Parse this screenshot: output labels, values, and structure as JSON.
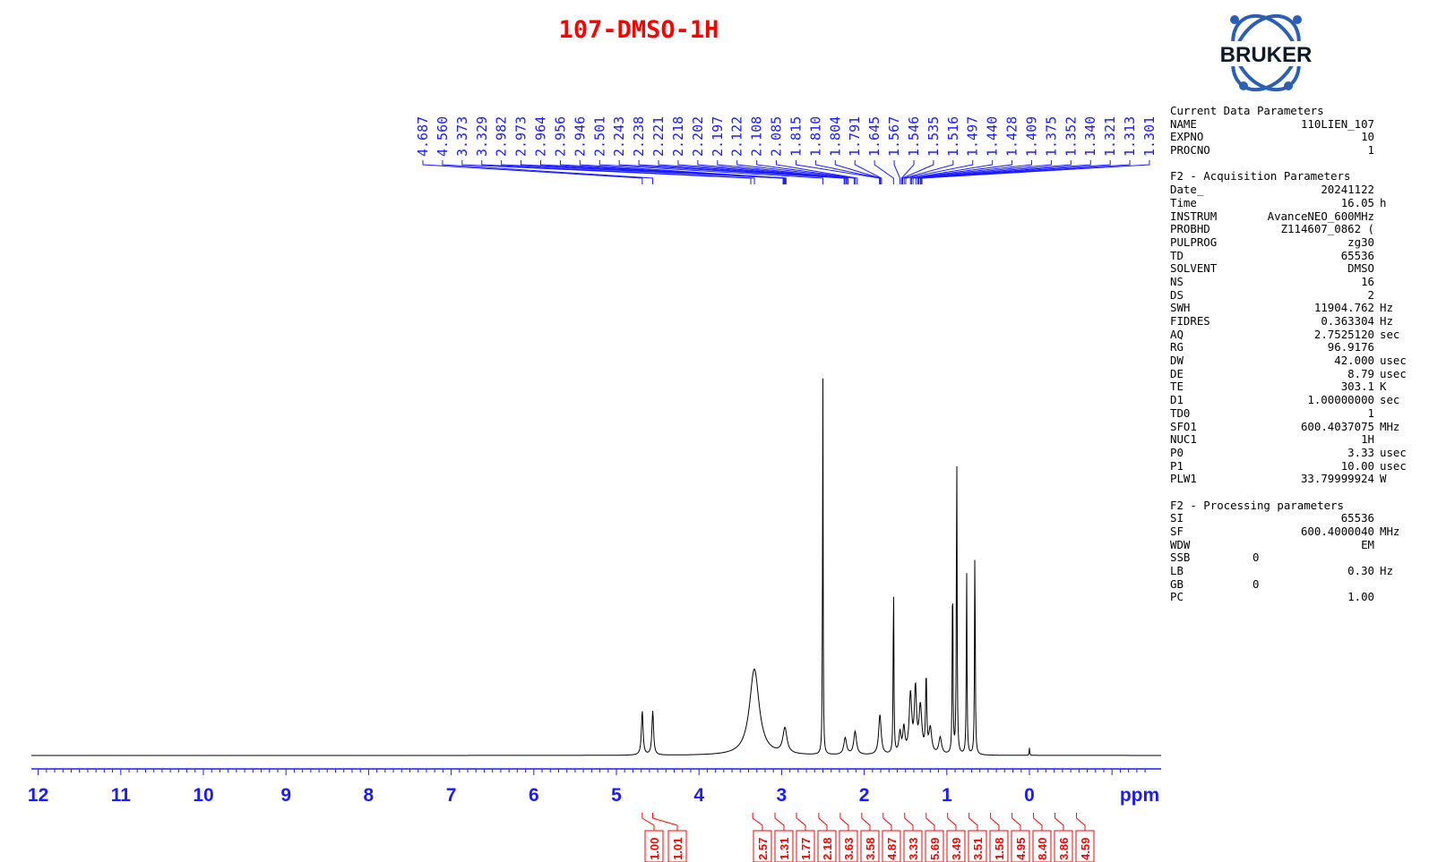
{
  "title": "107-DMSO-1H",
  "logo_text": "BRUKER",
  "chart_data": {
    "type": "line",
    "x_unit_label": "ppm",
    "xlim": [
      12.4,
      -1.4
    ],
    "x_ticks": [
      "12",
      "11",
      "10",
      "9",
      "8",
      "7",
      "6",
      "5",
      "4",
      "3",
      "2",
      "1",
      "0"
    ],
    "peak_labels": [
      "4.687",
      "4.560",
      "3.373",
      "3.329",
      "2.982",
      "2.973",
      "2.964",
      "2.956",
      "2.946",
      "2.501",
      "2.243",
      "2.238",
      "2.221",
      "2.218",
      "2.202",
      "2.197",
      "2.122",
      "2.108",
      "2.085",
      "1.815",
      "1.810",
      "1.804",
      "1.791",
      "1.645",
      "1.567",
      "1.546",
      "1.535",
      "1.516",
      "1.497",
      "1.440",
      "1.428",
      "1.409",
      "1.375",
      "1.352",
      "1.340",
      "1.321",
      "1.313",
      "1.301"
    ],
    "peaks": [
      {
        "ppm": 4.687,
        "height": 0.105,
        "width": 0.012
      },
      {
        "ppm": 4.56,
        "height": 0.105,
        "width": 0.012
      },
      {
        "ppm": 3.33,
        "height": 0.205,
        "width": 0.07
      },
      {
        "ppm": 2.96,
        "height": 0.06,
        "width": 0.03
      },
      {
        "ppm": 2.501,
        "height": 0.95,
        "width": 0.004
      },
      {
        "ppm": 2.23,
        "height": 0.04,
        "width": 0.02
      },
      {
        "ppm": 2.11,
        "height": 0.055,
        "width": 0.02
      },
      {
        "ppm": 1.81,
        "height": 0.095,
        "width": 0.018
      },
      {
        "ppm": 1.645,
        "height": 0.42,
        "width": 0.005
      },
      {
        "ppm": 1.567,
        "height": 0.05,
        "width": 0.015
      },
      {
        "ppm": 1.52,
        "height": 0.06,
        "width": 0.015
      },
      {
        "ppm": 1.44,
        "height": 0.14,
        "width": 0.018
      },
      {
        "ppm": 1.38,
        "height": 0.15,
        "width": 0.015
      },
      {
        "ppm": 1.32,
        "height": 0.11,
        "width": 0.02
      },
      {
        "ppm": 1.25,
        "height": 0.18,
        "width": 0.008
      },
      {
        "ppm": 1.2,
        "height": 0.06,
        "width": 0.02
      },
      {
        "ppm": 1.08,
        "height": 0.04,
        "width": 0.02
      },
      {
        "ppm": 0.93,
        "height": 0.45,
        "width": 0.005
      },
      {
        "ppm": 0.88,
        "height": 0.74,
        "width": 0.005
      },
      {
        "ppm": 0.76,
        "height": 0.44,
        "width": 0.005
      },
      {
        "ppm": 0.66,
        "height": 0.51,
        "width": 0.005
      },
      {
        "ppm": 0.0,
        "height": 0.018,
        "width": 0.004
      }
    ],
    "integrals": [
      {
        "value": "1.00",
        "ppm": 4.687
      },
      {
        "value": "1.01",
        "ppm": 4.56
      },
      {
        "value": "2.57",
        "ppm": 3.35
      },
      {
        "value": "1.31",
        "ppm": 3.08
      },
      {
        "value": "1.77",
        "ppm": 2.82
      },
      {
        "value": "2.18",
        "ppm": 2.55
      },
      {
        "value": "3.63",
        "ppm": 2.29
      },
      {
        "value": "3.58",
        "ppm": 2.03
      },
      {
        "value": "4.87",
        "ppm": 1.77
      },
      {
        "value": "3.33",
        "ppm": 1.51
      },
      {
        "value": "5.69",
        "ppm": 1.25
      },
      {
        "value": "3.49",
        "ppm": 0.99
      },
      {
        "value": "3.51",
        "ppm": 0.73
      },
      {
        "value": "1.58",
        "ppm": 0.47
      },
      {
        "value": "4.95",
        "ppm": 0.21
      },
      {
        "value": "8.40",
        "ppm": -0.05
      },
      {
        "value": "3.86",
        "ppm": -0.31
      },
      {
        "value": "4.59",
        "ppm": -0.57
      }
    ]
  },
  "parameters": [
    {
      "header": "Current Data Parameters",
      "rows": [
        {
          "name": "NAME",
          "value": "110LIEN_107",
          "unit": ""
        },
        {
          "name": "EXPNO",
          "value": "10",
          "unit": ""
        },
        {
          "name": "PROCNO",
          "value": "1",
          "unit": ""
        }
      ]
    },
    {
      "header": "F2 - Acquisition Parameters",
      "rows": [
        {
          "name": "Date_",
          "value": "20241122",
          "unit": ""
        },
        {
          "name": "Time",
          "value": "16.05",
          "unit": "h"
        },
        {
          "name": "INSTRUM",
          "value": "AvanceNEO_600MHz",
          "unit": ""
        },
        {
          "name": "PROBHD",
          "value": "Z114607_0862 (",
          "unit": ""
        },
        {
          "name": "PULPROG",
          "value": "zg30",
          "unit": ""
        },
        {
          "name": "TD",
          "value": "65536",
          "unit": ""
        },
        {
          "name": "SOLVENT",
          "value": "DMSO",
          "unit": ""
        },
        {
          "name": "NS",
          "value": "16",
          "unit": ""
        },
        {
          "name": "DS",
          "value": "2",
          "unit": ""
        },
        {
          "name": "SWH",
          "value": "11904.762",
          "unit": "Hz"
        },
        {
          "name": "FIDRES",
          "value": "0.363304",
          "unit": "Hz"
        },
        {
          "name": "AQ",
          "value": "2.7525120",
          "unit": "sec"
        },
        {
          "name": "RG",
          "value": "96.9176",
          "unit": ""
        },
        {
          "name": "DW",
          "value": "42.000",
          "unit": "usec"
        },
        {
          "name": "DE",
          "value": "8.79",
          "unit": "usec"
        },
        {
          "name": "TE",
          "value": "303.1",
          "unit": "K"
        },
        {
          "name": "D1",
          "value": "1.00000000",
          "unit": "sec"
        },
        {
          "name": "TD0",
          "value": "1",
          "unit": ""
        },
        {
          "name": "SFO1",
          "value": "600.4037075",
          "unit": "MHz"
        },
        {
          "name": "NUC1",
          "value": "1H",
          "unit": ""
        },
        {
          "name": "P0",
          "value": "3.33",
          "unit": "usec"
        },
        {
          "name": "P1",
          "value": "10.00",
          "unit": "usec"
        },
        {
          "name": "PLW1",
          "value": "33.79999924",
          "unit": "W"
        }
      ]
    },
    {
      "header": "F2 - Processing parameters",
      "rows": [
        {
          "name": "SI",
          "value": "65536",
          "unit": ""
        },
        {
          "name": "SF",
          "value": "600.4000040",
          "unit": "MHz"
        },
        {
          "name": "WDW",
          "value": "EM",
          "unit": ""
        },
        {
          "name": "SSB",
          "value": "0",
          "unit": "",
          "left": true
        },
        {
          "name": "LB",
          "value": "0.30",
          "unit": "Hz"
        },
        {
          "name": "GB",
          "value": "0",
          "unit": "",
          "left": true
        },
        {
          "name": "PC",
          "value": "1.00",
          "unit": ""
        }
      ]
    }
  ]
}
